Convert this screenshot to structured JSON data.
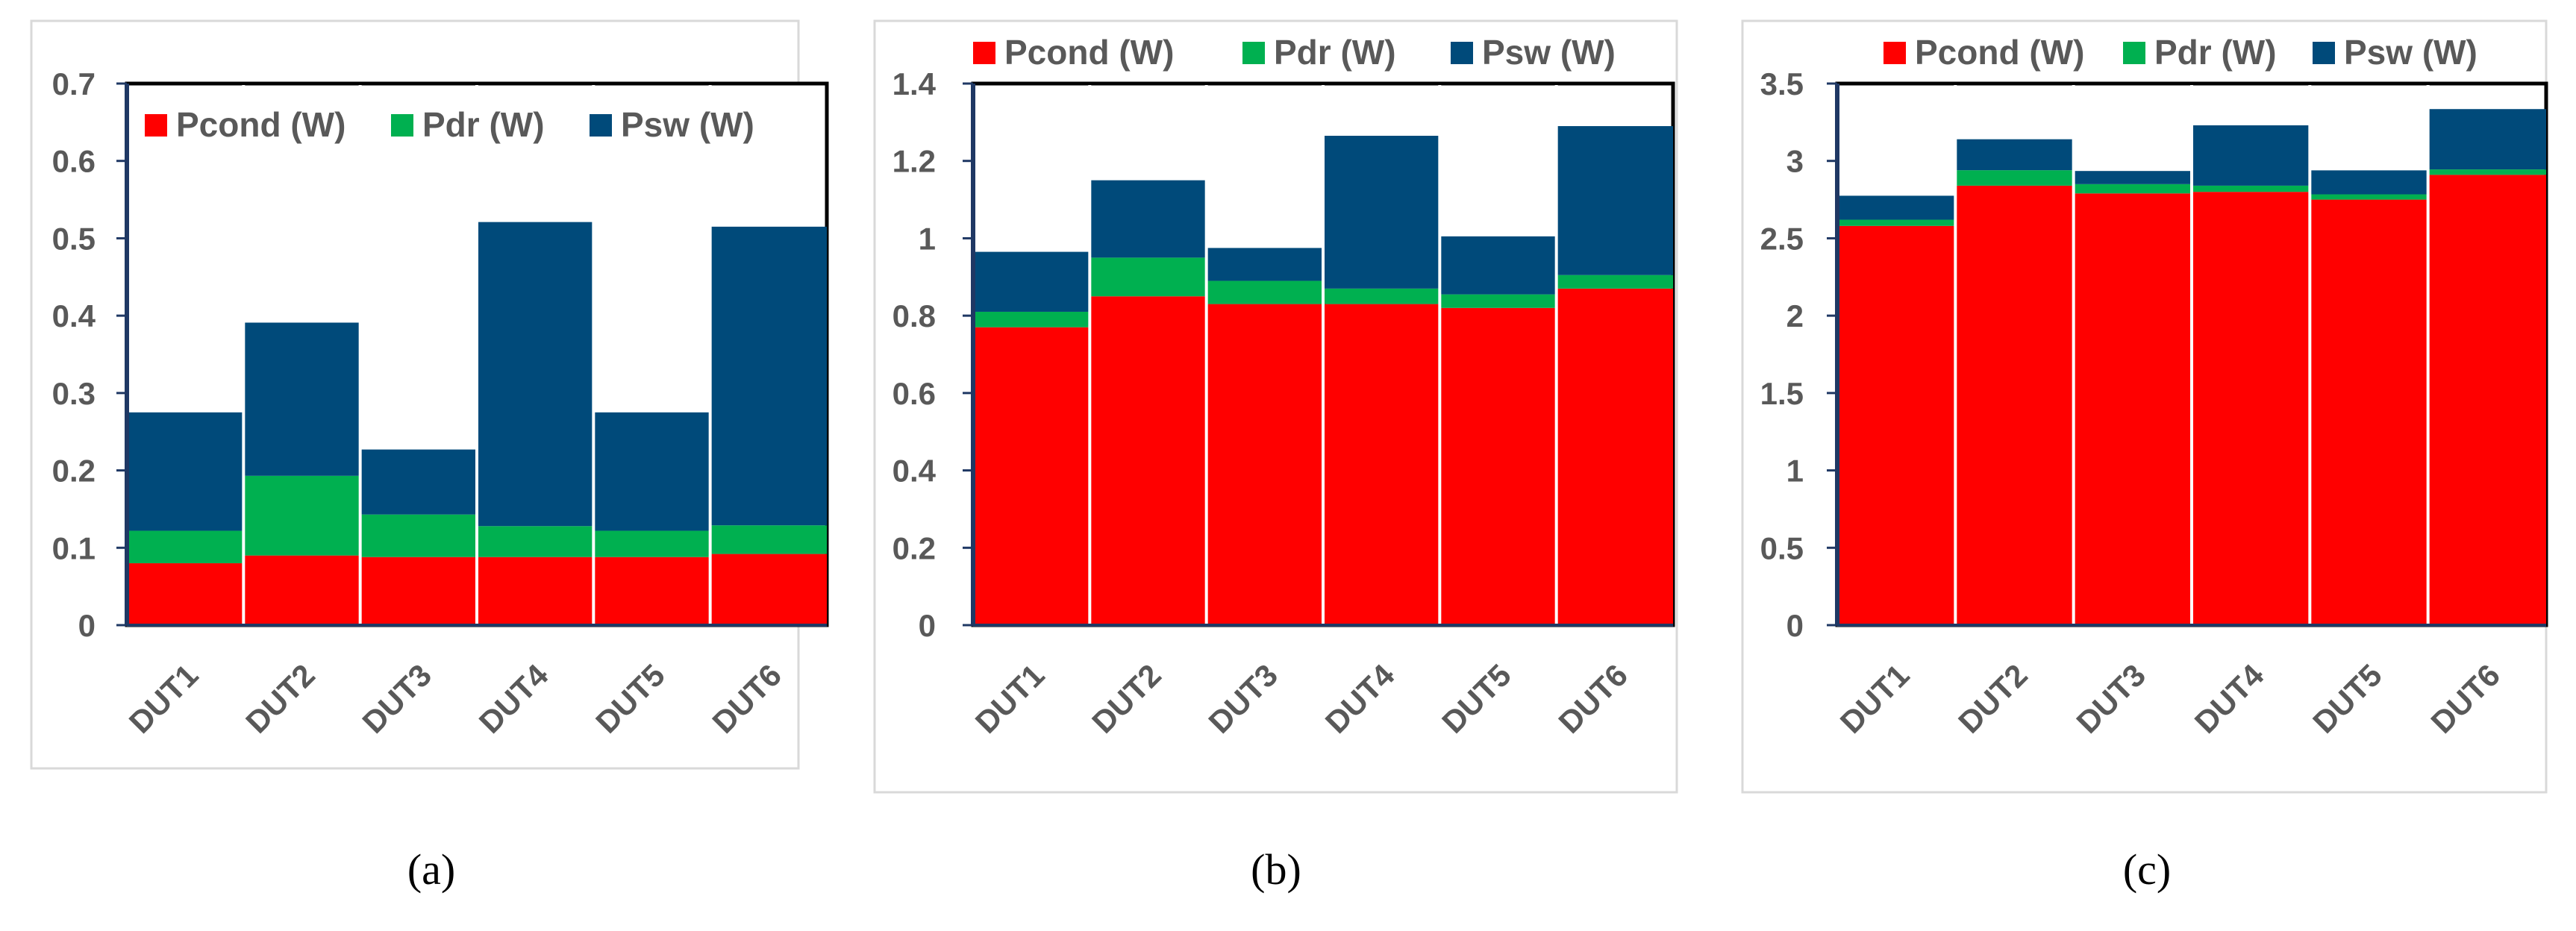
{
  "figure": {
    "panel_labels": [
      "(a)",
      "(b)",
      "(c)"
    ]
  },
  "chart_data": [
    {
      "type": "bar",
      "stacked": true,
      "panel": "(a)",
      "categories": [
        "DUT1",
        "DUT2",
        "DUT3",
        "DUT4",
        "DUT5",
        "DUT6"
      ],
      "series": [
        {
          "name": "Pcond (W)",
          "color": "#ff0000",
          "values": [
            0.08,
            0.09,
            0.088,
            0.088,
            0.088,
            0.092
          ]
        },
        {
          "name": "Pdr (W)",
          "color": "#00b050",
          "values": [
            0.042,
            0.103,
            0.055,
            0.04,
            0.034,
            0.037
          ]
        },
        {
          "name": "Psw (W)",
          "color": "#004a7a",
          "values": [
            0.153,
            0.198,
            0.084,
            0.393,
            0.153,
            0.386
          ]
        }
      ],
      "ylim": [
        0,
        0.7
      ],
      "yticks": [
        "0",
        "0.1",
        "0.2",
        "0.3",
        "0.4",
        "0.5",
        "0.6",
        "0.7"
      ],
      "legend_position": "inside-top",
      "grid": false,
      "xlabel": "",
      "ylabel": "",
      "title": ""
    },
    {
      "type": "bar",
      "stacked": true,
      "panel": "(b)",
      "categories": [
        "DUT1",
        "DUT2",
        "DUT3",
        "DUT4",
        "DUT5",
        "DUT6"
      ],
      "series": [
        {
          "name": "Pcond (W)",
          "color": "#ff0000",
          "values": [
            0.77,
            0.85,
            0.83,
            0.83,
            0.82,
            0.87
          ]
        },
        {
          "name": "Pdr (W)",
          "color": "#00b050",
          "values": [
            0.04,
            0.1,
            0.06,
            0.04,
            0.035,
            0.035
          ]
        },
        {
          "name": "Psw (W)",
          "color": "#004a7a",
          "values": [
            0.155,
            0.2,
            0.085,
            0.395,
            0.15,
            0.385
          ]
        }
      ],
      "ylim": [
        0,
        1.4
      ],
      "yticks": [
        "0",
        "0.2",
        "0.4",
        "0.6",
        "0.8",
        "1",
        "1.2",
        "1.4"
      ],
      "legend_position": "top",
      "grid": false,
      "xlabel": "",
      "ylabel": "",
      "title": ""
    },
    {
      "type": "bar",
      "stacked": true,
      "panel": "(c)",
      "categories": [
        "DUT1",
        "DUT2",
        "DUT3",
        "DUT4",
        "DUT5",
        "DUT6"
      ],
      "series": [
        {
          "name": "Pcond (W)",
          "color": "#ff0000",
          "values": [
            2.58,
            2.84,
            2.79,
            2.8,
            2.75,
            2.91
          ]
        },
        {
          "name": "Pdr (W)",
          "color": "#00b050",
          "values": [
            0.04,
            0.1,
            0.06,
            0.04,
            0.034,
            0.035
          ]
        },
        {
          "name": "Psw (W)",
          "color": "#004a7a",
          "values": [
            0.155,
            0.2,
            0.085,
            0.39,
            0.155,
            0.39
          ]
        }
      ],
      "ylim": [
        0,
        3.5
      ],
      "yticks": [
        "0",
        "0.5",
        "1",
        "1.5",
        "2",
        "2.5",
        "3",
        "3.5"
      ],
      "legend_position": "top",
      "grid": false,
      "xlabel": "",
      "ylabel": "",
      "title": ""
    }
  ]
}
